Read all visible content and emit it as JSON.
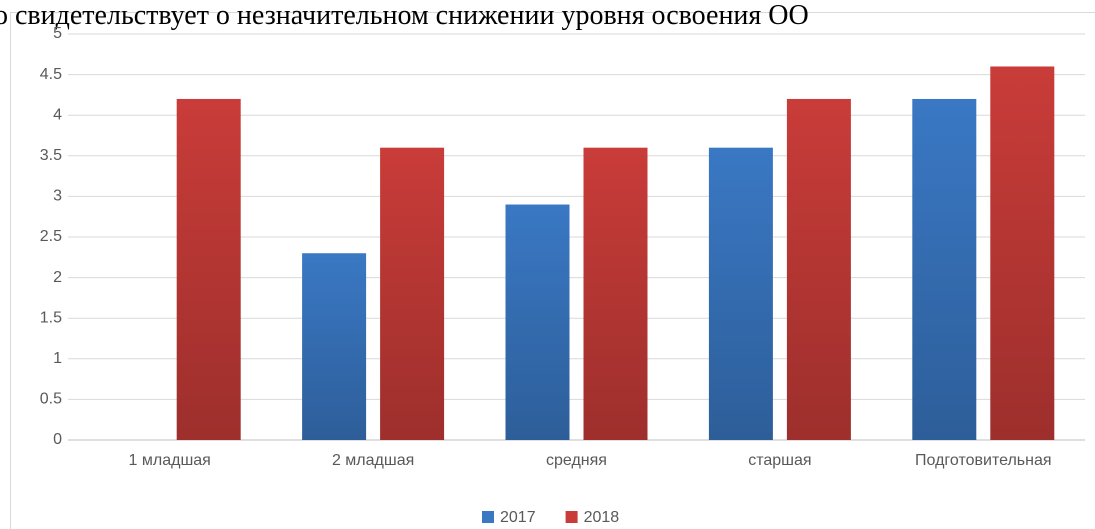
{
  "chart_data": {
    "type": "bar",
    "annotations": [
      "о свидетельствует о незначительном снижении уровня освоения ОО"
    ],
    "categories": [
      "1 младшая",
      "2 младшая",
      "средняя",
      "старшая",
      "Подготовительная"
    ],
    "series": [
      {
        "name": "2017",
        "color": "#3a78c4",
        "values": [
          0,
          2.3,
          2.9,
          3.6,
          4.2
        ]
      },
      {
        "name": "2018",
        "color": "#c93c39",
        "values": [
          4.2,
          3.6,
          3.6,
          4.2,
          4.6
        ]
      }
    ],
    "ylim": [
      0,
      5
    ],
    "yticks": [
      0,
      0.5,
      1,
      1.5,
      2,
      2.5,
      3,
      3.5,
      4,
      4.5,
      5
    ],
    "grid": true,
    "legend": "bottom"
  }
}
